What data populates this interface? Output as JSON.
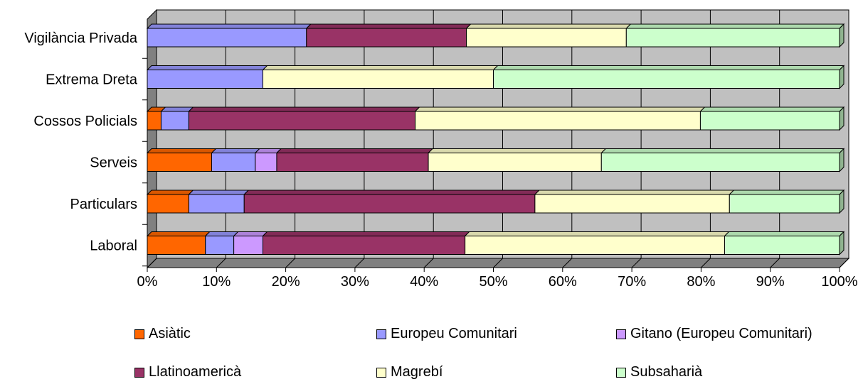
{
  "chart_data": {
    "type": "bar",
    "orientation": "horizontal",
    "stacked": "percent",
    "title": "",
    "xlabel": "",
    "ylabel": "",
    "xlim": [
      0,
      100
    ],
    "x_ticks": [
      "0%",
      "10%",
      "20%",
      "30%",
      "40%",
      "50%",
      "60%",
      "70%",
      "80%",
      "90%",
      "100%"
    ],
    "grid": "vertical",
    "legend_position": "bottom",
    "categories": [
      "Vigilància Privada",
      "Extrema Dreta",
      "Cossos Policials",
      "Serveis",
      "Particulars",
      "Laboral"
    ],
    "series": [
      {
        "name": "Asiàtic",
        "color": "#FF6600",
        "values": [
          0,
          0,
          2,
          9.3,
          6,
          8.4
        ]
      },
      {
        "name": "Europeu Comunitari",
        "color": "#9999FF",
        "values": [
          23,
          16.7,
          4,
          6.3,
          8,
          4.1
        ]
      },
      {
        "name": "Gitano (Europeu Comunitari)",
        "color": "#CC99FF",
        "values": [
          0,
          0,
          0,
          3.1,
          0,
          4.2
        ]
      },
      {
        "name": "Llatinoamericà",
        "color": "#993366",
        "values": [
          23.1,
          0,
          32.7,
          21.9,
          42,
          29.2
        ]
      },
      {
        "name": "Magrebí",
        "color": "#FFFFCC",
        "values": [
          23.1,
          33.3,
          41.2,
          25,
          28.1,
          37.5
        ]
      },
      {
        "name": "Subsaharià",
        "color": "#CCFFCC",
        "values": [
          30.8,
          50,
          20.1,
          34.4,
          15.9,
          16.6
        ]
      }
    ]
  },
  "colors": {
    "plot_wall": "#C0C0C0",
    "plot_floor": "#808080",
    "gridline": "#000000"
  }
}
